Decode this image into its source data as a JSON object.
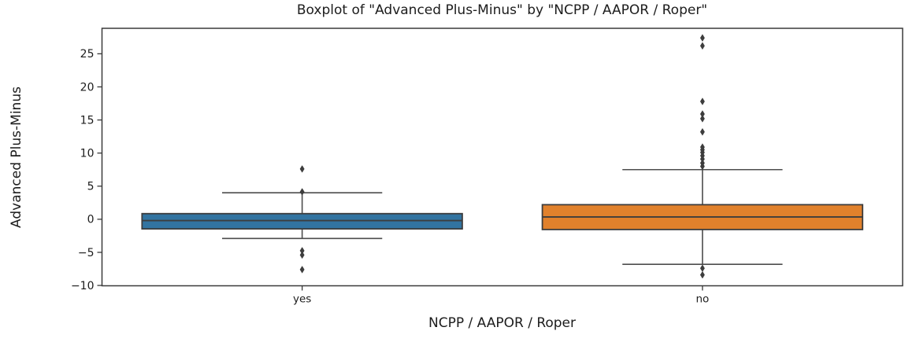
{
  "chart_data": {
    "type": "boxplot",
    "title": "Boxplot of \"Advanced Plus-Minus\" by \"NCPP / AAPOR / Roper\"",
    "xlabel": "NCPP / AAPOR / Roper",
    "ylabel": "Advanced Plus-Minus",
    "categories": [
      "yes",
      "no"
    ],
    "yticks": [
      -10,
      -5,
      0,
      5,
      10,
      15,
      20,
      25
    ],
    "ylim": [
      -10.05,
      28.85
    ],
    "grid": false,
    "legend": "none",
    "colors": {
      "box_yes": "#3274a1",
      "box_no": "#e1812c",
      "box_edge": "#3d3d3d",
      "whisker": "#4d4d4d",
      "outlier": "#3d3d3d",
      "spine": "#3a3a3a",
      "text": "#1c1c1c"
    },
    "series": [
      {
        "name": "yes",
        "color": "#3274a1",
        "whisker_low": -2.9,
        "q1": -1.45,
        "median": -0.2,
        "q3": 0.85,
        "whisker_high": 4.0,
        "outliers": [
          7.6,
          4.15,
          -4.75,
          -5.4,
          -7.6
        ]
      },
      {
        "name": "no",
        "color": "#e1812c",
        "whisker_low": -6.8,
        "q1": -1.55,
        "median": 0.35,
        "q3": 2.2,
        "whisker_high": 7.5,
        "outliers": [
          27.4,
          26.2,
          17.8,
          15.9,
          15.2,
          13.2,
          10.9,
          10.5,
          10.1,
          9.6,
          9.1,
          8.5,
          8.0,
          -7.4,
          -8.4
        ]
      }
    ]
  }
}
